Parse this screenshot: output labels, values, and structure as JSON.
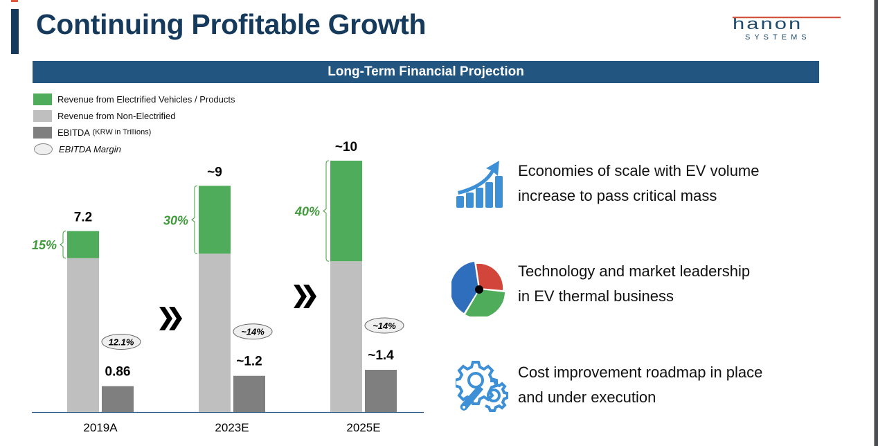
{
  "slide": {
    "title": "Continuing Profitable Growth",
    "logo": {
      "name": "Hanon",
      "sub": "SYSTEMS",
      "colors": {
        "navy": "#1e4c6e",
        "red": "#d2523c"
      }
    },
    "banner": "Long-Term Financial Projection"
  },
  "legend": [
    {
      "label": "Revenue from Electrified Vehicles / Products",
      "color": "#4fac5b"
    },
    {
      "label": "Revenue from Non-Electrified",
      "color": "#bfbfbf"
    },
    {
      "label": "EBITDA",
      "note": "(KRW in Trillions)",
      "color": "#7f7f7f"
    },
    {
      "label": "EBITDA Margin",
      "shape": "ellipse"
    }
  ],
  "chart_data": {
    "type": "bar",
    "title": "Long-Term Financial Projection",
    "units": "KRW in Trillions",
    "categories": [
      "2019A",
      "2023E",
      "2025E"
    ],
    "series": [
      {
        "name": "Revenue from Electrified Vehicles / Products",
        "values": [
          1.08,
          2.7,
          4.0
        ],
        "color": "#4fac5b"
      },
      {
        "name": "Revenue from Non-Electrified",
        "values": [
          6.12,
          6.3,
          6.0
        ],
        "color": "#bfbfbf"
      },
      {
        "name": "EBITDA",
        "values": [
          0.86,
          1.2,
          1.4
        ],
        "color": "#7f7f7f"
      }
    ],
    "revenue_total_labels": [
      "7.2",
      "~9",
      "~10"
    ],
    "revenue_totals": [
      7.2,
      9,
      10
    ],
    "electrified_share_labels": [
      "15%",
      "30%",
      "40%"
    ],
    "ebitda_labels": [
      "0.86",
      "~1.2",
      "~1.4"
    ],
    "ebitda_margin_labels": [
      "12.1%",
      "~14%",
      "~14%"
    ],
    "ylim": [
      0,
      10.5
    ],
    "stacked": true,
    "grid": false,
    "legend_position": "top-left",
    "accent_green": "#3f9b3a"
  },
  "features": [
    {
      "icon": "growth-chart-icon",
      "line1": "Economies of scale with EV volume",
      "line2": "increase to pass critical mass"
    },
    {
      "icon": "pie-chart-icon",
      "line1": "Technology and market leadership",
      "line2": "in EV thermal business"
    },
    {
      "icon": "gear-wrench-icon",
      "line1": "Cost improvement roadmap in place",
      "line2": "and under execution"
    }
  ]
}
